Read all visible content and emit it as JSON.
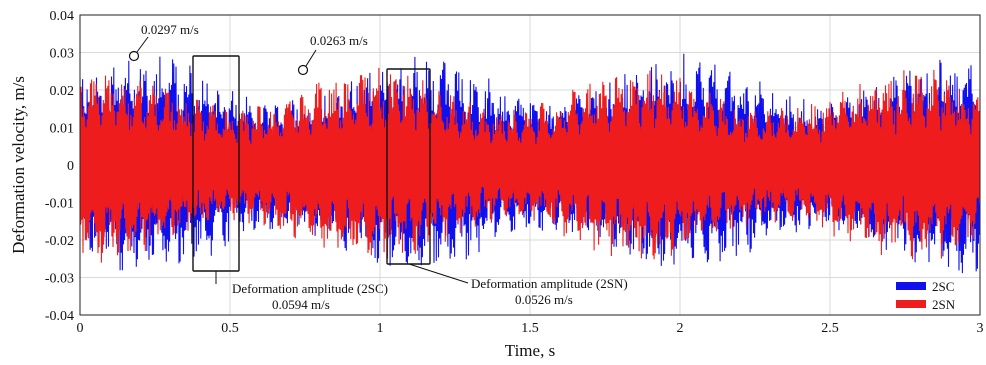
{
  "chart_data": {
    "type": "line",
    "xlabel": "Time, s",
    "ylabel": "Deformation velocity, m/s",
    "xlim": [
      0,
      3
    ],
    "ylim": [
      -0.04,
      0.04
    ],
    "xticks": [
      "0",
      "0.5",
      "1",
      "1.5",
      "2",
      "2.5",
      "3"
    ],
    "yticks": [
      "-0.04",
      "-0.03",
      "-0.02",
      "-0.01",
      "0",
      "0.01",
      "0.02",
      "0.03",
      "0.04"
    ],
    "grid": true,
    "legend": "bottom-right",
    "series": [
      {
        "name": "2SC",
        "color": "#1010ee",
        "amplitude": 0.0297,
        "description": "dense oscillation"
      },
      {
        "name": "2SN",
        "color": "#ee1c1c",
        "amplitude": 0.0263,
        "description": "dense oscillation"
      }
    ],
    "annotations": [
      {
        "text": "0.0297 m/s",
        "x": 0.18,
        "y": 0.0297
      },
      {
        "text": "0.0263 m/s",
        "x": 0.745,
        "y": 0.0263
      },
      {
        "text_line1": "Deformation amplitude (2SC)",
        "text_line2": "0.0594 m/s",
        "x_range": [
          0.39,
          0.54
        ],
        "y_range": [
          -0.028,
          0.03
        ]
      },
      {
        "text_line1": "Deformation amplitude (2SN)",
        "text_line2": "0.0526 m/s",
        "x_range": [
          1.04,
          1.17
        ],
        "y_range": [
          -0.026,
          0.026
        ]
      }
    ]
  }
}
